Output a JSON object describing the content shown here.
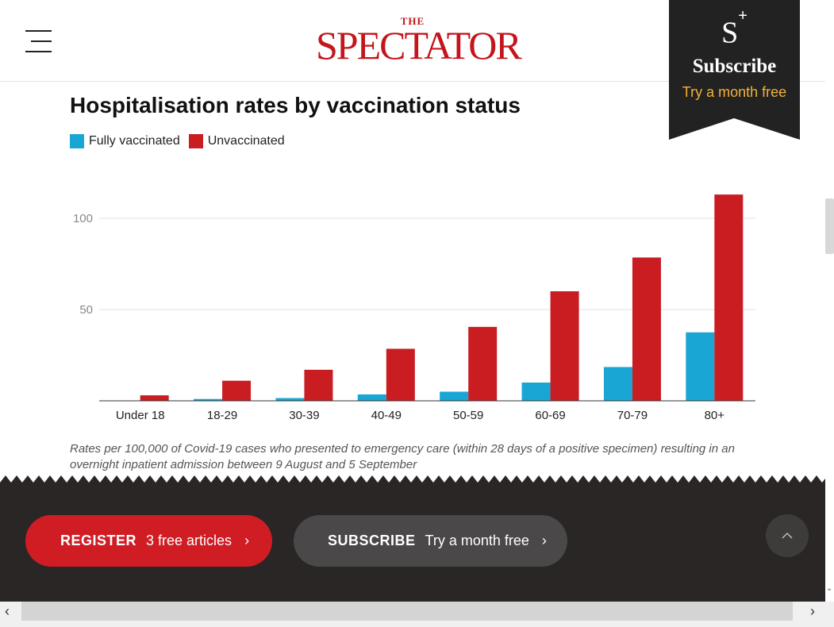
{
  "header": {
    "logo_the": "THE",
    "logo_main": "SPECTATOR"
  },
  "promo": {
    "mark": "S",
    "mark_plus": "+",
    "title": "Subscribe",
    "subtitle": "Try a month free"
  },
  "chart_data": {
    "type": "bar",
    "title": "Hospitalisation rates by vaccination status",
    "categories": [
      "Under 18",
      "18-29",
      "30-39",
      "40-49",
      "50-59",
      "60-69",
      "70-79",
      "80+"
    ],
    "series": [
      {
        "name": "Fully vaccinated",
        "color": "#1aa6d4",
        "values": [
          0,
          1,
          1.5,
          3.5,
          5,
          10,
          18.5,
          37.5
        ]
      },
      {
        "name": "Unvaccinated",
        "color": "#c91d22",
        "values": [
          3,
          11,
          17,
          28.5,
          40.5,
          60,
          78.5,
          113
        ]
      }
    ],
    "yticks": [
      50,
      100
    ],
    "ylim": [
      0,
      120
    ],
    "grid": true,
    "legend": "top-left",
    "caption": "Rates per 100,000 of Covid-19 cases who presented to emergency care (within 28 days of a positive specimen) resulting in an overnight inpatient admission between 9 August and 5 September"
  },
  "footer": {
    "register_strong": "REGISTER",
    "register_light": "3 free articles",
    "subscribe_strong": "SUBSCRIBE",
    "subscribe_light": "Try a month free",
    "chevron": "›"
  },
  "scroll": {
    "left": "‹",
    "right": "›",
    "down": "⌄"
  }
}
